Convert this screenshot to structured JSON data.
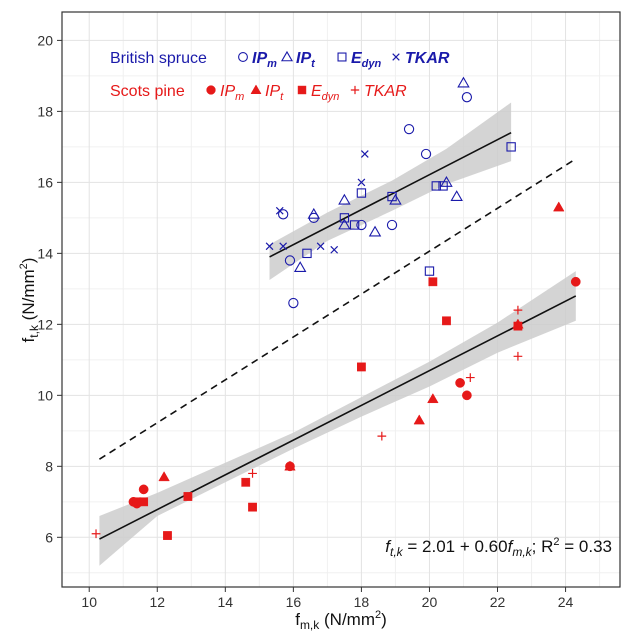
{
  "chart_data": {
    "type": "scatter",
    "xlabel": {
      "main": "f",
      "sub": "m,k",
      "unit": " (N/mm",
      "sup": "2",
      "close": ")"
    },
    "ylabel": {
      "main": "f",
      "sub": "t,k",
      "unit": " (N/mm",
      "sup": "2",
      "close": ")"
    },
    "xlim": [
      9.2,
      25.6
    ],
    "ylim": [
      4.6,
      20.8
    ],
    "x_ticks": [
      10,
      12,
      14,
      16,
      18,
      20,
      22,
      24
    ],
    "y_ticks": [
      6,
      8,
      10,
      12,
      14,
      16,
      18,
      20
    ],
    "grid": true,
    "colors": {
      "spruce": "#1a1aaa",
      "pine": "#e61919",
      "band": "#cccccc"
    },
    "legend": {
      "position": "top-left",
      "groups": [
        {
          "label": "British spruce",
          "color": "#1a1aaa",
          "entries": [
            {
              "marker": "open-circle",
              "text": "IP",
              "sub": "m"
            },
            {
              "marker": "open-triangle",
              "text": "IP",
              "sub": "t"
            },
            {
              "marker": "open-square",
              "text": "E",
              "sub": "dyn"
            },
            {
              "marker": "cross",
              "text": "TKAR",
              "sub": ""
            }
          ]
        },
        {
          "label": "Scots pine",
          "color": "#e61919",
          "entries": [
            {
              "marker": "filled-circle",
              "text": "IP",
              "sub": "m"
            },
            {
              "marker": "filled-triangle",
              "text": "IP",
              "sub": "t"
            },
            {
              "marker": "filled-square",
              "text": "E",
              "sub": "dyn"
            },
            {
              "marker": "plus",
              "text": "TKAR",
              "sub": ""
            }
          ]
        }
      ]
    },
    "equation": {
      "lhs": "f",
      "lhs_sub": "t,k",
      "mid": " = 2.01 + 0.60",
      "rhs": "f",
      "rhs_sub": "m,k",
      "sep": "; R",
      "sup": "2",
      "tail": " = 0.33"
    },
    "identity_line": {
      "style": "dashed",
      "x": [
        10.3,
        24.2
      ],
      "y": [
        8.2,
        16.6
      ]
    },
    "spruce_fit": {
      "x": [
        15.3,
        22.4
      ],
      "y": [
        13.9,
        17.4
      ],
      "band_upper": [
        [
          15.3,
          14.25
        ],
        [
          17.0,
          15.15
        ],
        [
          18.9,
          16.05
        ],
        [
          20.5,
          16.95
        ],
        [
          22.4,
          18.25
        ]
      ],
      "band_lower": [
        [
          22.4,
          16.6
        ],
        [
          20.5,
          15.95
        ],
        [
          18.9,
          15.2
        ],
        [
          17.0,
          14.35
        ],
        [
          15.3,
          13.25
        ]
      ]
    },
    "pine_fit": {
      "x": [
        10.3,
        24.3
      ],
      "y": [
        5.95,
        12.8
      ],
      "band_upper": [
        [
          10.3,
          6.6
        ],
        [
          12.0,
          7.25
        ],
        [
          14.0,
          8.1
        ],
        [
          16.0,
          8.95
        ],
        [
          18.0,
          9.95
        ],
        [
          20.0,
          10.95
        ],
        [
          22.0,
          12.05
        ],
        [
          24.3,
          13.5
        ]
      ],
      "band_lower": [
        [
          24.3,
          12.1
        ],
        [
          22.0,
          11.2
        ],
        [
          20.0,
          10.25
        ],
        [
          18.0,
          9.4
        ],
        [
          16.0,
          8.5
        ],
        [
          14.0,
          7.55
        ],
        [
          12.0,
          6.6
        ],
        [
          10.3,
          5.2
        ]
      ]
    },
    "series": [
      {
        "name": "British spruce IPm",
        "marker": "open-circle",
        "color": "#1a1aaa",
        "points": [
          [
            15.7,
            15.1
          ],
          [
            16.6,
            15.0
          ],
          [
            15.9,
            13.8
          ],
          [
            16.0,
            12.6
          ],
          [
            18.0,
            14.8
          ],
          [
            18.9,
            14.8
          ],
          [
            19.4,
            17.5
          ],
          [
            19.9,
            16.8
          ],
          [
            21.1,
            18.4
          ]
        ]
      },
      {
        "name": "British spruce IPt",
        "marker": "open-triangle",
        "color": "#1a1aaa",
        "points": [
          [
            16.2,
            13.6
          ],
          [
            16.6,
            15.1
          ],
          [
            17.5,
            15.5
          ],
          [
            17.5,
            14.8
          ],
          [
            18.4,
            14.6
          ],
          [
            19.0,
            15.5
          ],
          [
            20.5,
            16.0
          ],
          [
            20.8,
            15.6
          ],
          [
            21.0,
            18.8
          ]
        ]
      },
      {
        "name": "British spruce Edyn",
        "marker": "open-square",
        "color": "#1a1aaa",
        "points": [
          [
            16.4,
            14.0
          ],
          [
            17.5,
            15.0
          ],
          [
            17.8,
            14.8
          ],
          [
            18.0,
            15.7
          ],
          [
            18.9,
            15.6
          ],
          [
            20.0,
            13.5
          ],
          [
            20.2,
            15.9
          ],
          [
            20.4,
            15.9
          ],
          [
            22.4,
            17.0
          ]
        ]
      },
      {
        "name": "British spruce TKAR",
        "marker": "cross",
        "color": "#1a1aaa",
        "points": [
          [
            15.3,
            14.2
          ],
          [
            15.6,
            15.2
          ],
          [
            15.7,
            14.2
          ],
          [
            16.8,
            14.2
          ],
          [
            17.2,
            14.1
          ],
          [
            18.0,
            16.0
          ],
          [
            18.1,
            16.8
          ]
        ]
      },
      {
        "name": "Scots pine IPm",
        "marker": "filled-circle",
        "color": "#e61919",
        "points": [
          [
            11.3,
            7.0
          ],
          [
            11.4,
            6.95
          ],
          [
            11.6,
            7.35
          ],
          [
            15.9,
            8.0
          ],
          [
            20.9,
            10.35
          ],
          [
            21.1,
            10.0
          ],
          [
            24.3,
            13.2
          ]
        ]
      },
      {
        "name": "Scots pine IPt",
        "marker": "filled-triangle",
        "color": "#e61919",
        "points": [
          [
            12.2,
            7.7
          ],
          [
            15.9,
            8.0
          ],
          [
            19.7,
            9.3
          ],
          [
            20.1,
            9.9
          ],
          [
            22.6,
            12.0
          ],
          [
            23.8,
            15.3
          ]
        ]
      },
      {
        "name": "Scots pine Edyn",
        "marker": "filled-square",
        "color": "#e61919",
        "points": [
          [
            11.4,
            7.0
          ],
          [
            11.6,
            7.0
          ],
          [
            12.3,
            6.05
          ],
          [
            12.9,
            7.15
          ],
          [
            14.6,
            7.55
          ],
          [
            14.8,
            6.85
          ],
          [
            18.0,
            10.8
          ],
          [
            20.1,
            13.2
          ],
          [
            20.5,
            12.1
          ],
          [
            22.6,
            11.95
          ]
        ]
      },
      {
        "name": "Scots pine TKAR",
        "marker": "plus",
        "color": "#e61919",
        "points": [
          [
            10.2,
            6.1
          ],
          [
            11.4,
            7.0
          ],
          [
            14.8,
            7.8
          ],
          [
            18.6,
            8.85
          ],
          [
            21.2,
            10.5
          ],
          [
            22.6,
            11.1
          ],
          [
            22.6,
            12.4
          ]
        ]
      }
    ]
  }
}
